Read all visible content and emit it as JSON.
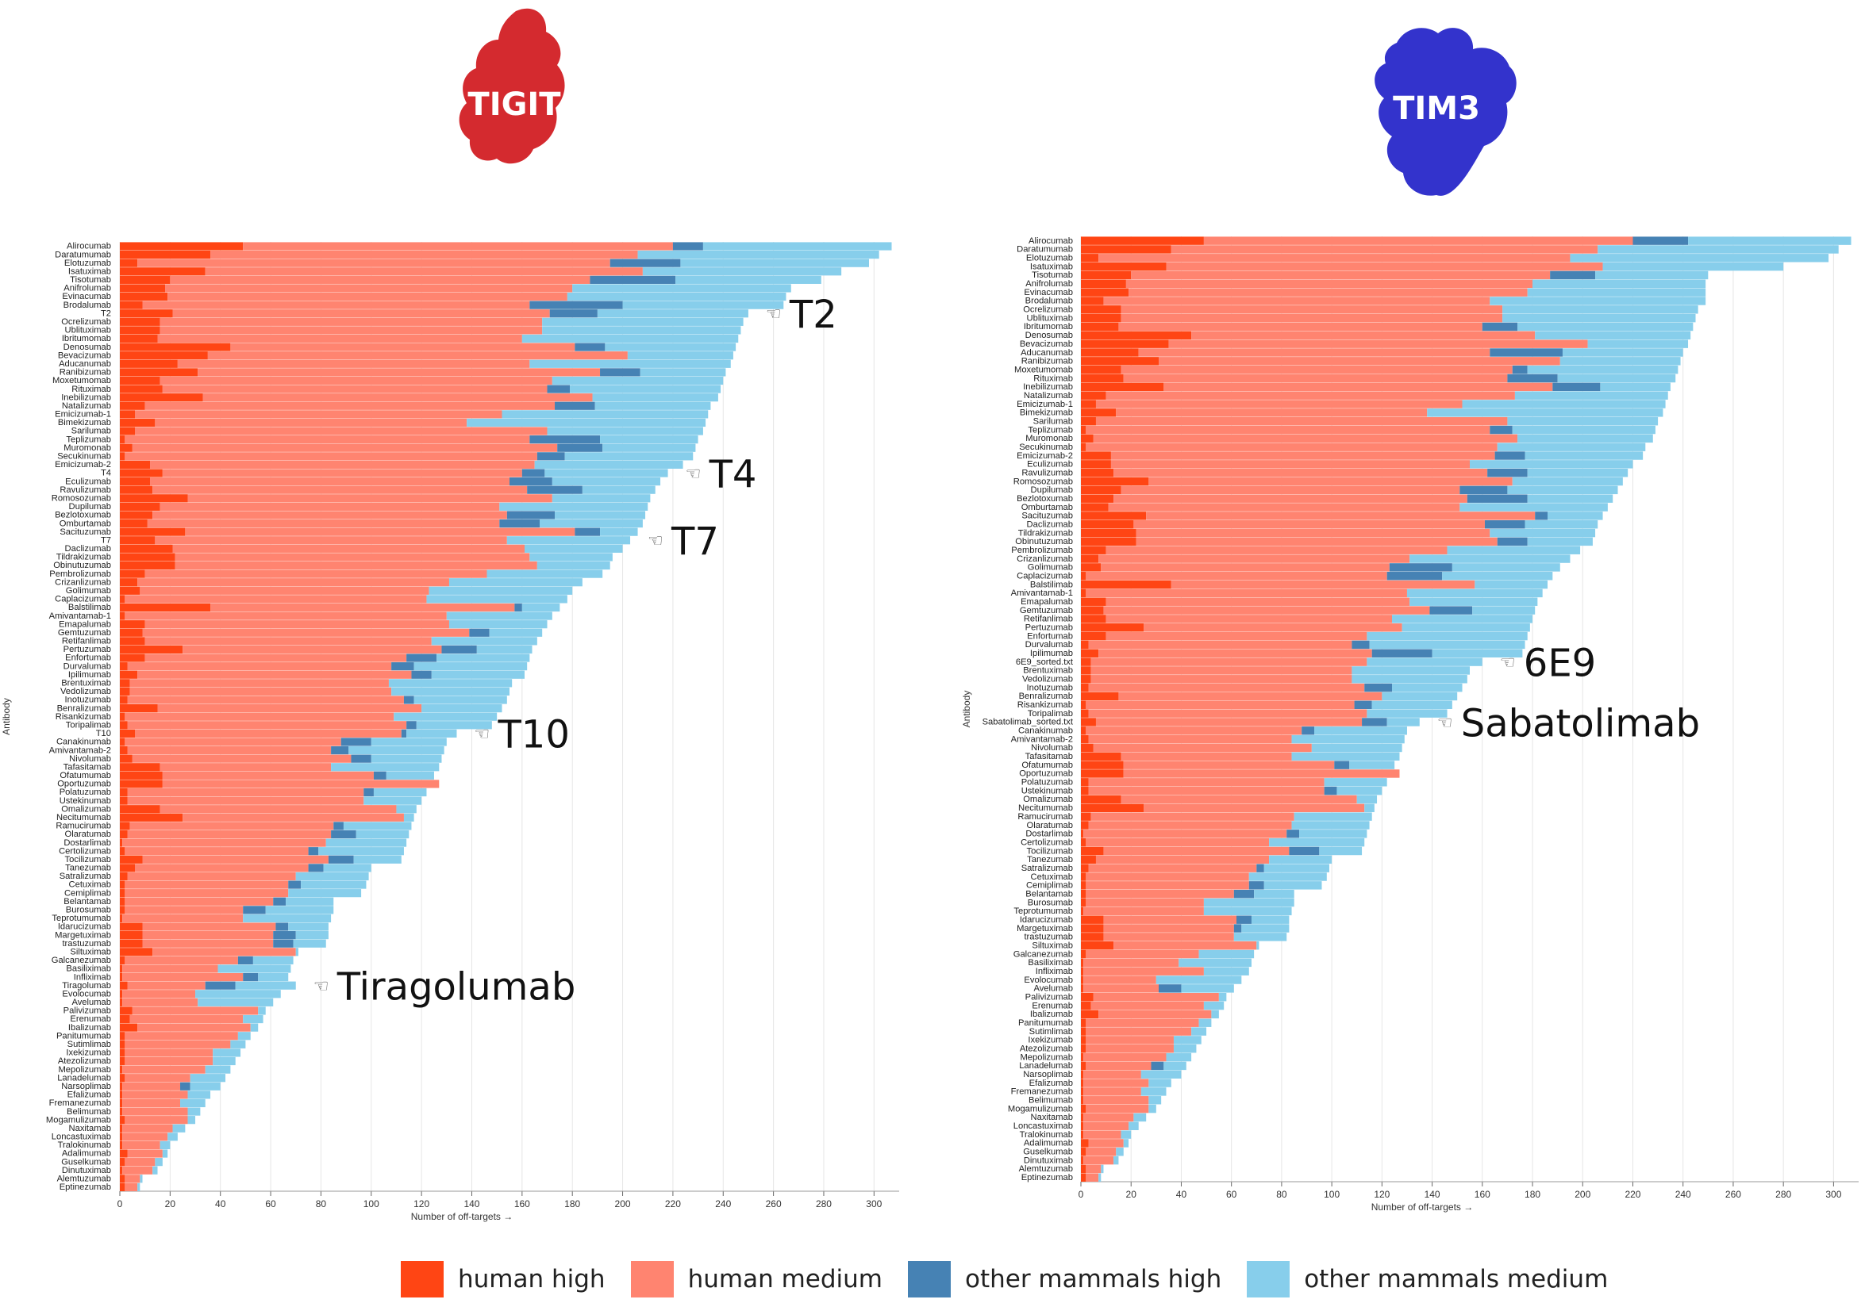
{
  "colors": {
    "human_high": "#FF4514",
    "human_medium": "#FF8470",
    "other_mammals_high": "#4682B4",
    "other_mammals_medium": "#87CEEB",
    "tigit_blob": "#D42A2F",
    "tim3_blob": "#3333CC"
  },
  "legend": [
    {
      "key": "human_high",
      "label": "human high"
    },
    {
      "key": "human_medium",
      "label": "human medium"
    },
    {
      "key": "other_mammals_high",
      "label": "other mammals high"
    },
    {
      "key": "other_mammals_medium",
      "label": "other mammals medium"
    }
  ],
  "chart_data": [
    {
      "type": "bar",
      "orientation": "horizontal-stacked",
      "protein_label": "TIGIT",
      "ylabel": "Antibody",
      "xlabel": "Number of off-targets →",
      "xlim": [
        0,
        310
      ],
      "x_ticks": [
        "0",
        "20",
        "40",
        "60",
        "80",
        "100",
        "120",
        "140",
        "160",
        "180",
        "200",
        "220",
        "240",
        "260",
        "280",
        "300"
      ],
      "series_names": [
        "human high",
        "human medium",
        "other mammals high",
        "other mammals medium"
      ],
      "categories": [
        "Alirocumab",
        "Daratumumab",
        "Elotuzumab",
        "Isatuximab",
        "Tisotumab",
        "Anifrolumab",
        "Evinacumab",
        "Brodalumab",
        "T2",
        "Ocrelizumab",
        "Ublituximab",
        "Ibritumomab",
        "Denosumab",
        "Bevacizumab",
        "Aducanumab",
        "Ranibizumab",
        "Moxetumomab",
        "Rituximab",
        "Inebilizumab",
        "Natalizumab",
        "Emicizumab-1",
        "Bimekizumab",
        "Sarilumab",
        "Teplizumab",
        "Muromonab",
        "Secukinumab",
        "Emicizumab-2",
        "T4",
        "Eculizumab",
        "Ravulizumab",
        "Romosozumab",
        "Dupilumab",
        "Bezlotoxumab",
        "Omburtamab",
        "Sacituzumab",
        "T7",
        "Daclizumab",
        "Tildrakizumab",
        "Obinutuzumab",
        "Pembrolizumab",
        "Crizanlizumab",
        "Golimumab",
        "Caplacizumab",
        "Balstilimab",
        "Amivantamab-1",
        "Emapalumab",
        "Gemtuzumab",
        "Retifanlimab",
        "Pertuzumab",
        "Enfortumab",
        "Durvalumab",
        "Ipilimumab",
        "Brentuximab",
        "Vedolizumab",
        "Inotuzumab",
        "Benralizumab",
        "Risankizumab",
        "Toripalimab",
        "T10",
        "Canakinumab",
        "Amivantamab-2",
        "Nivolumab",
        "Tafasitamab",
        "Ofatumumab",
        "Oportuzumab",
        "Polatuzumab",
        "Ustekinumab",
        "Omalizumab",
        "Necitumumab",
        "Ramucirumab",
        "Olaratumab",
        "Dostarlimab",
        "Certolizumab",
        "Tocilizumab",
        "Tanezumab",
        "Satralizumab",
        "Cetuximab",
        "Cemiplimab",
        "Belantamab",
        "Burosumab",
        "Teprotumumab",
        "Idarucizumab",
        "Margetuximab",
        "trastuzumab",
        "Siltuximab",
        "Galcanezumab",
        "Basiliximab",
        "Infliximab",
        "Tiragolumab",
        "Evolocumab",
        "Avelumab",
        "Palivizumab",
        "Erenumab",
        "Ibalizumab",
        "Panitumumab",
        "Sutimlimab",
        "Ixekizumab",
        "Atezolizumab",
        "Mepolizumab",
        "Lanadelumab",
        "Narsoplimab",
        "Efalizumab",
        "Fremanezumab",
        "Belimumab",
        "Mogamulizumab",
        "Naxitamab",
        "Loncastuximab",
        "Tralokinumab",
        "Adalimumab",
        "Guselkumab",
        "Dinutuximab",
        "Alemtuzumab",
        "Eptinezumab"
      ],
      "totals": [
        307,
        302,
        298,
        287,
        279,
        267,
        265,
        264,
        250,
        248,
        247,
        246,
        245,
        244,
        243,
        241,
        240,
        239,
        238,
        235,
        234,
        233,
        232,
        230,
        229,
        228,
        224,
        218,
        215,
        213,
        211,
        210,
        209,
        208,
        206,
        203,
        200,
        196,
        195,
        192,
        184,
        180,
        178,
        175,
        172,
        170,
        168,
        166,
        164,
        163,
        162,
        161,
        156,
        155,
        154,
        152,
        150,
        148,
        134,
        130,
        129,
        128,
        127,
        125,
        123,
        122,
        120,
        118,
        117,
        116,
        115,
        114,
        113,
        112,
        100,
        99,
        98,
        96,
        85,
        85,
        84,
        83,
        83,
        82,
        71,
        69,
        68,
        67,
        70,
        64,
        61,
        58,
        57,
        55,
        52,
        50,
        48,
        46,
        44,
        42,
        40,
        36,
        34,
        32,
        30,
        26,
        23,
        20,
        19,
        17,
        15,
        9,
        8
      ],
      "segments": {
        "human high": [
          49,
          36,
          7,
          34,
          20,
          18,
          19,
          9,
          21,
          16,
          16,
          15,
          44,
          35,
          23,
          31,
          16,
          17,
          33,
          10,
          6,
          14,
          6,
          2,
          5,
          2,
          12,
          17,
          12,
          13,
          27,
          16,
          13,
          11,
          26,
          14,
          21,
          22,
          22,
          10,
          7,
          8,
          2,
          36,
          2,
          10,
          9,
          10,
          25,
          10,
          3,
          7,
          4,
          4,
          3,
          15,
          2,
          3,
          6,
          2,
          3,
          5,
          16,
          17,
          17,
          3,
          3,
          16,
          25,
          4,
          3,
          1,
          2,
          9,
          6,
          3,
          2,
          2,
          2,
          2,
          1,
          9,
          9,
          9,
          13,
          2,
          1,
          1,
          3,
          1,
          1,
          5,
          4,
          7,
          2,
          2,
          2,
          2,
          1,
          2,
          1,
          1,
          1,
          1,
          2,
          1,
          1,
          1,
          3,
          2,
          1,
          2,
          2
        ],
        "human medium": [
          171,
          170,
          188,
          174,
          167,
          162,
          159,
          154,
          150,
          152,
          152,
          145,
          137,
          167,
          140,
          160,
          156,
          153,
          155,
          163,
          146,
          124,
          164,
          161,
          169,
          164,
          153,
          143,
          143,
          149,
          145,
          135,
          141,
          140,
          155,
          140,
          140,
          141,
          144,
          136,
          124,
          115,
          120,
          121,
          128,
          121,
          130,
          114,
          103,
          104,
          105,
          109,
          103,
          104,
          110,
          105,
          107,
          111,
          106,
          86,
          81,
          87,
          68,
          84,
          110,
          94,
          94,
          94,
          88,
          81,
          81,
          81,
          73,
          74,
          69,
          67,
          65,
          65,
          59,
          47,
          48,
          53,
          52,
          52,
          57,
          45,
          38,
          48,
          31,
          29,
          30,
          50,
          45,
          45,
          45,
          42,
          35,
          35,
          33,
          26,
          23,
          26,
          23,
          26,
          25,
          20,
          18,
          15,
          14,
          12,
          12,
          6,
          5
        ]
      },
      "annotations": [
        {
          "row": "T2",
          "label": "T2"
        },
        {
          "row": "T4",
          "label": "T4"
        },
        {
          "row": "T7",
          "label": "T7"
        },
        {
          "row": "T10",
          "label": "T10"
        },
        {
          "row": "Tiragolumab",
          "label": "Tiragolumab"
        }
      ]
    },
    {
      "type": "bar",
      "orientation": "horizontal-stacked",
      "protein_label": "TIM3",
      "ylabel": "Antibody",
      "xlabel": "Number of off-targets →",
      "xlim": [
        0,
        310
      ],
      "x_ticks": [
        "0",
        "20",
        "40",
        "60",
        "80",
        "100",
        "120",
        "140",
        "160",
        "180",
        "200",
        "220",
        "240",
        "260",
        "280",
        "300"
      ],
      "series_names": [
        "human high",
        "human medium",
        "other mammals high",
        "other mammals medium"
      ],
      "categories": [
        "Alirocumab",
        "Daratumumab",
        "Elotuzumab",
        "Isatuximab",
        "Tisotumab",
        "Anifrolumab",
        "Evinacumab",
        "Brodalumab",
        "Ocrelizumab",
        "Ublituximab",
        "Ibritumomab",
        "Denosumab",
        "Bevacizumab",
        "Aducanumab",
        "Ranibizumab",
        "Moxetumomab",
        "Rituximab",
        "Inebilizumab",
        "Natalizumab",
        "Emicizumab-1",
        "Bimekizumab",
        "Sarilumab",
        "Teplizumab",
        "Muromonab",
        "Secukinumab",
        "Emicizumab-2",
        "Eculizumab",
        "Ravulizumab",
        "Romosozumab",
        "Dupilumab",
        "Bezlotoxumab",
        "Omburtamab",
        "Sacituzumab",
        "Daclizumab",
        "Tildrakizumab",
        "Obinutuzumab",
        "Pembrolizumab",
        "Crizanlizumab",
        "Golimumab",
        "Caplacizumab",
        "Balstilimab",
        "Amivantamab-1",
        "Emapalumab",
        "Gemtuzumab",
        "Retifanlimab",
        "Pertuzumab",
        "Enfortumab",
        "Durvalumab",
        "Ipilimumab",
        "6E9_sorted.txt",
        "Brentuximab",
        "Vedolizumab",
        "Inotuzumab",
        "Benralizumab",
        "Risankizumab",
        "Toripalimab",
        "Sabatolimab_sorted.txt",
        "Canakinumab",
        "Amivantamab-2",
        "Nivolumab",
        "Tafasitamab",
        "Ofatumumab",
        "Oportuzumab",
        "Polatuzumab",
        "Ustekinumab",
        "Omalizumab",
        "Necitumumab",
        "Ramucirumab",
        "Olaratumab",
        "Dostarlimab",
        "Certolizumab",
        "Tocilizumab",
        "Tanezumab",
        "Satralizumab",
        "Cetuximab",
        "Cemiplimab",
        "Belantamab",
        "Burosumab",
        "Teprotumumab",
        "Idarucizumab",
        "Margetuximab",
        "trastuzumab",
        "Siltuximab",
        "Galcanezumab",
        "Basiliximab",
        "Infliximab",
        "Evolocumab",
        "Avelumab",
        "Palivizumab",
        "Erenumab",
        "Ibalizumab",
        "Panitumumab",
        "Sutimlimab",
        "Ixekizumab",
        "Atezolizumab",
        "Mepolizumab",
        "Lanadelumab",
        "Narsoplimab",
        "Efalizumab",
        "Fremanezumab",
        "Belimumab",
        "Mogamulizumab",
        "Naxitamab",
        "Loncastuximab",
        "Tralokinumab",
        "Adalimumab",
        "Guselkumab",
        "Dinutuximab",
        "Alemtuzumab",
        "Eptinezumab"
      ],
      "totals": [
        307,
        302,
        298,
        280,
        250,
        249,
        249,
        249,
        246,
        245,
        244,
        243,
        242,
        240,
        239,
        238,
        237,
        235,
        234,
        233,
        232,
        230,
        229,
        228,
        225,
        224,
        220,
        218,
        216,
        214,
        212,
        210,
        208,
        206,
        205,
        204,
        199,
        195,
        191,
        188,
        186,
        184,
        182,
        181,
        180,
        179,
        178,
        177,
        176,
        160,
        155,
        154,
        152,
        150,
        148,
        146,
        135,
        130,
        129,
        128,
        127,
        125,
        123,
        122,
        120,
        118,
        117,
        116,
        115,
        114,
        113,
        112,
        100,
        99,
        98,
        96,
        85,
        85,
        84,
        83,
        83,
        82,
        71,
        69,
        68,
        67,
        64,
        61,
        58,
        57,
        55,
        52,
        50,
        48,
        46,
        44,
        42,
        40,
        36,
        34,
        32,
        30,
        26,
        23,
        20,
        19,
        17,
        15,
        9,
        8
      ],
      "segments": {
        "human high": [
          49,
          36,
          7,
          34,
          20,
          18,
          19,
          9,
          16,
          16,
          15,
          44,
          35,
          23,
          31,
          16,
          17,
          33,
          10,
          6,
          14,
          6,
          2,
          5,
          2,
          12,
          12,
          13,
          27,
          16,
          13,
          11,
          26,
          21,
          22,
          22,
          10,
          7,
          8,
          2,
          36,
          2,
          10,
          9,
          10,
          25,
          10,
          3,
          7,
          4,
          4,
          4,
          3,
          15,
          2,
          3,
          6,
          2,
          3,
          5,
          16,
          17,
          17,
          3,
          3,
          16,
          25,
          4,
          3,
          1,
          2,
          9,
          6,
          3,
          2,
          2,
          2,
          2,
          1,
          9,
          9,
          9,
          13,
          2,
          1,
          1,
          1,
          1,
          5,
          4,
          7,
          2,
          2,
          2,
          2,
          1,
          2,
          1,
          1,
          1,
          1,
          2,
          1,
          1,
          1,
          3,
          2,
          1,
          2,
          2
        ],
        "human medium": [
          171,
          170,
          188,
          174,
          167,
          162,
          159,
          154,
          152,
          152,
          145,
          137,
          167,
          140,
          160,
          156,
          153,
          155,
          163,
          146,
          124,
          164,
          161,
          169,
          164,
          153,
          143,
          149,
          145,
          135,
          141,
          140,
          155,
          140,
          141,
          144,
          136,
          124,
          115,
          120,
          121,
          128,
          121,
          130,
          114,
          103,
          104,
          105,
          109,
          110,
          104,
          104,
          110,
          105,
          107,
          111,
          106,
          86,
          81,
          87,
          68,
          84,
          110,
          94,
          94,
          94,
          88,
          81,
          81,
          81,
          73,
          74,
          69,
          67,
          65,
          65,
          59,
          47,
          48,
          53,
          52,
          52,
          57,
          45,
          38,
          48,
          29,
          30,
          50,
          45,
          45,
          45,
          42,
          35,
          35,
          33,
          26,
          23,
          26,
          23,
          26,
          25,
          20,
          18,
          15,
          14,
          12,
          12,
          6,
          5
        ]
      },
      "annotations": [
        {
          "row": "6E9_sorted.txt",
          "label": "6E9"
        },
        {
          "row": "Sabatolimab_sorted.txt",
          "label": "Sabatolimab"
        }
      ]
    }
  ]
}
